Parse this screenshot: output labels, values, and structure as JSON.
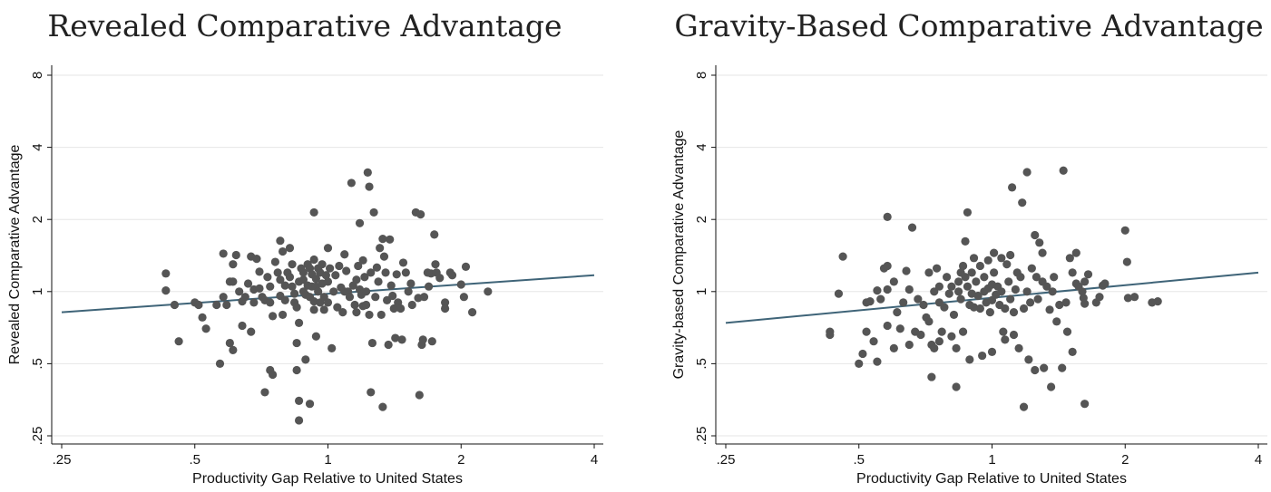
{
  "colors": {
    "points": "#555555",
    "fit_line": "#3f6478",
    "gridline": "#e6e6e6"
  },
  "chart_data": [
    {
      "type": "scatter",
      "title": "Revealed Comparative Advantage",
      "xlabel": "Productivity Gap Relative to United States",
      "ylabel": "Revealed Comparative Advantage",
      "x_scale": "log2",
      "y_scale": "log2",
      "xlim": [
        0.25,
        4
      ],
      "ylim": [
        0.25,
        8
      ],
      "x_ticks": [
        0.25,
        0.5,
        1,
        2,
        4
      ],
      "x_tick_labels": [
        ".25",
        ".5",
        "1",
        "2",
        "4"
      ],
      "y_ticks": [
        0.25,
        0.5,
        1,
        2,
        4,
        8
      ],
      "y_tick_labels": [
        ".25",
        ".5",
        "1",
        "2",
        "4",
        "8"
      ],
      "grid": "horizontal",
      "fit_line": {
        "x": [
          0.25,
          4
        ],
        "y": [
          0.82,
          1.17
        ]
      },
      "points": [
        [
          0.43,
          1.19
        ],
        [
          0.43,
          1.01
        ],
        [
          0.45,
          0.88
        ],
        [
          0.46,
          0.62
        ],
        [
          0.5,
          0.9
        ],
        [
          0.51,
          0.88
        ],
        [
          0.52,
          0.78
        ],
        [
          0.53,
          0.7
        ],
        [
          0.56,
          0.88
        ],
        [
          0.57,
          0.5
        ],
        [
          0.58,
          1.44
        ],
        [
          0.58,
          0.95
        ],
        [
          0.59,
          0.88
        ],
        [
          0.6,
          1.1
        ],
        [
          0.6,
          0.61
        ],
        [
          0.61,
          1.3
        ],
        [
          0.61,
          1.1
        ],
        [
          0.61,
          0.57
        ],
        [
          0.62,
          1.42
        ],
        [
          0.63,
          1.0
        ],
        [
          0.64,
          0.91
        ],
        [
          0.64,
          0.72
        ],
        [
          0.65,
          0.95
        ],
        [
          0.66,
          1.08
        ],
        [
          0.67,
          1.4
        ],
        [
          0.67,
          0.68
        ],
        [
          0.68,
          1.02
        ],
        [
          0.68,
          0.9
        ],
        [
          0.69,
          1.37
        ],
        [
          0.7,
          1.21
        ],
        [
          0.7,
          1.03
        ],
        [
          0.71,
          0.95
        ],
        [
          0.72,
          0.92
        ],
        [
          0.72,
          0.38
        ],
        [
          0.73,
          1.15
        ],
        [
          0.74,
          1.05
        ],
        [
          0.74,
          0.9
        ],
        [
          0.74,
          0.47
        ],
        [
          0.75,
          0.79
        ],
        [
          0.75,
          0.45
        ],
        [
          0.76,
          1.33
        ],
        [
          0.77,
          1.2
        ],
        [
          0.78,
          1.12
        ],
        [
          0.78,
          1.63
        ],
        [
          0.78,
          0.96
        ],
        [
          0.79,
          1.47
        ],
        [
          0.79,
          0.8
        ],
        [
          0.8,
          1.06
        ],
        [
          0.8,
          0.92
        ],
        [
          0.81,
          1.2
        ],
        [
          0.82,
          1.52
        ],
        [
          0.83,
          1.3
        ],
        [
          0.82,
          1.15
        ],
        [
          0.83,
          1.05
        ],
        [
          0.84,
          0.98
        ],
        [
          0.84,
          0.9
        ],
        [
          0.85,
          0.86
        ],
        [
          0.85,
          0.61
        ],
        [
          0.85,
          0.47
        ],
        [
          0.86,
          1.1
        ],
        [
          0.86,
          0.74
        ],
        [
          0.86,
          0.35
        ],
        [
          0.86,
          0.29
        ],
        [
          0.87,
          1.25
        ],
        [
          0.88,
          1.2
        ],
        [
          0.88,
          1.12
        ],
        [
          0.88,
          1.0
        ],
        [
          0.89,
          0.97
        ],
        [
          0.89,
          0.52
        ],
        [
          0.9,
          1.3
        ],
        [
          0.9,
          1.06
        ],
        [
          0.91,
          1.25
        ],
        [
          0.91,
          0.95
        ],
        [
          0.91,
          0.34
        ],
        [
          0.92,
          1.18
        ],
        [
          0.92,
          1.05
        ],
        [
          0.93,
          2.14
        ],
        [
          0.93,
          1.36
        ],
        [
          0.93,
          0.91
        ],
        [
          0.93,
          0.84
        ],
        [
          0.94,
          1.13
        ],
        [
          0.94,
          1.05
        ],
        [
          0.94,
          0.65
        ],
        [
          0.95,
          1.25
        ],
        [
          0.95,
          1.0
        ],
        [
          0.96,
          0.9
        ],
        [
          0.96,
          1.2
        ],
        [
          0.97,
          1.3
        ],
        [
          0.97,
          1.08
        ],
        [
          0.98,
          0.95
        ],
        [
          0.98,
          0.84
        ],
        [
          0.99,
          1.17
        ],
        [
          1.0,
          1.52
        ],
        [
          1.0,
          1.1
        ],
        [
          1.0,
          0.9
        ],
        [
          1.01,
          1.25
        ],
        [
          1.02,
          0.58
        ],
        [
          1.03,
          1.0
        ],
        [
          1.04,
          1.17
        ],
        [
          1.05,
          0.86
        ],
        [
          1.06,
          1.28
        ],
        [
          1.07,
          1.04
        ],
        [
          1.08,
          0.82
        ],
        [
          1.09,
          1.43
        ],
        [
          1.09,
          1.0
        ],
        [
          1.1,
          1.22
        ],
        [
          1.11,
          1.0
        ],
        [
          1.12,
          0.95
        ],
        [
          1.13,
          2.84
        ],
        [
          1.14,
          1.06
        ],
        [
          1.15,
          0.88
        ],
        [
          1.16,
          1.12
        ],
        [
          1.16,
          0.82
        ],
        [
          1.17,
          1.28
        ],
        [
          1.18,
          1.93
        ],
        [
          1.18,
          1.02
        ],
        [
          1.19,
          0.97
        ],
        [
          1.2,
          1.35
        ],
        [
          1.2,
          0.87
        ],
        [
          1.21,
          1.15
        ],
        [
          1.22,
          1.0
        ],
        [
          1.22,
          0.88
        ],
        [
          1.23,
          3.14
        ],
        [
          1.24,
          2.74
        ],
        [
          1.24,
          0.8
        ],
        [
          1.25,
          1.2
        ],
        [
          1.25,
          0.38
        ],
        [
          1.26,
          0.61
        ],
        [
          1.27,
          2.14
        ],
        [
          1.28,
          0.95
        ],
        [
          1.29,
          1.26
        ],
        [
          1.3,
          1.1
        ],
        [
          1.31,
          1.52
        ],
        [
          1.32,
          0.8
        ],
        [
          1.33,
          1.66
        ],
        [
          1.33,
          0.33
        ],
        [
          1.34,
          1.4
        ],
        [
          1.35,
          1.2
        ],
        [
          1.36,
          0.92
        ],
        [
          1.37,
          0.6
        ],
        [
          1.38,
          1.65
        ],
        [
          1.39,
          1.06
        ],
        [
          1.4,
          0.96
        ],
        [
          1.41,
          0.85
        ],
        [
          1.42,
          0.64
        ],
        [
          1.43,
          1.18
        ],
        [
          1.44,
          0.9
        ],
        [
          1.46,
          0.85
        ],
        [
          1.47,
          0.63
        ],
        [
          1.48,
          1.32
        ],
        [
          1.5,
          1.2
        ],
        [
          1.52,
          1.0
        ],
        [
          1.54,
          1.08
        ],
        [
          1.55,
          0.88
        ],
        [
          1.58,
          2.14
        ],
        [
          1.6,
          0.94
        ],
        [
          1.61,
          0.37
        ],
        [
          1.62,
          2.1
        ],
        [
          1.63,
          0.6
        ],
        [
          1.64,
          0.63
        ],
        [
          1.65,
          0.95
        ],
        [
          1.68,
          1.2
        ],
        [
          1.69,
          1.05
        ],
        [
          1.71,
          1.19
        ],
        [
          1.72,
          0.62
        ],
        [
          1.74,
          1.73
        ],
        [
          1.75,
          1.3
        ],
        [
          1.76,
          1.2
        ],
        [
          1.79,
          1.14
        ],
        [
          1.84,
          0.9
        ],
        [
          1.84,
          0.85
        ],
        [
          1.89,
          1.2
        ],
        [
          1.91,
          1.17
        ],
        [
          2.0,
          1.07
        ],
        [
          2.03,
          0.95
        ],
        [
          2.05,
          1.27
        ],
        [
          2.12,
          0.82
        ],
        [
          2.3,
          1.0
        ]
      ]
    },
    {
      "type": "scatter",
      "title": "Gravity-Based Comparative Advantage",
      "xlabel": "Productivity Gap Relative to United States",
      "ylabel": "Gravity-based Comparative Advantage",
      "x_scale": "log2",
      "y_scale": "log2",
      "xlim": [
        0.25,
        4
      ],
      "ylim": [
        0.25,
        8
      ],
      "x_ticks": [
        0.25,
        0.5,
        1,
        2,
        4
      ],
      "x_tick_labels": [
        ".25",
        ".5",
        "1",
        "2",
        "4"
      ],
      "y_ticks": [
        0.25,
        0.5,
        1,
        2,
        4,
        8
      ],
      "y_tick_labels": [
        ".25",
        ".5",
        "1",
        "2",
        "4",
        "8"
      ],
      "grid": "horizontal",
      "fit_line": {
        "x": [
          0.25,
          4
        ],
        "y": [
          0.74,
          1.2
        ]
      },
      "points": [
        [
          0.43,
          0.68
        ],
        [
          0.43,
          0.66
        ],
        [
          0.45,
          0.98
        ],
        [
          0.46,
          1.4
        ],
        [
          0.5,
          0.5
        ],
        [
          0.51,
          0.55
        ],
        [
          0.52,
          0.9
        ],
        [
          0.52,
          0.68
        ],
        [
          0.53,
          0.91
        ],
        [
          0.54,
          0.62
        ],
        [
          0.55,
          1.01
        ],
        [
          0.55,
          0.51
        ],
        [
          0.56,
          0.93
        ],
        [
          0.57,
          1.25
        ],
        [
          0.58,
          2.05
        ],
        [
          0.58,
          1.28
        ],
        [
          0.58,
          1.02
        ],
        [
          0.58,
          0.72
        ],
        [
          0.6,
          1.1
        ],
        [
          0.6,
          0.58
        ],
        [
          0.61,
          0.82
        ],
        [
          0.62,
          0.7
        ],
        [
          0.63,
          0.9
        ],
        [
          0.64,
          1.22
        ],
        [
          0.65,
          1.02
        ],
        [
          0.65,
          0.6
        ],
        [
          0.66,
          1.85
        ],
        [
          0.67,
          0.68
        ],
        [
          0.68,
          0.93
        ],
        [
          0.69,
          0.66
        ],
        [
          0.7,
          0.88
        ],
        [
          0.71,
          0.78
        ],
        [
          0.72,
          1.2
        ],
        [
          0.72,
          0.75
        ],
        [
          0.73,
          0.6
        ],
        [
          0.73,
          0.44
        ],
        [
          0.74,
          1.0
        ],
        [
          0.74,
          0.58
        ],
        [
          0.75,
          1.25
        ],
        [
          0.76,
          1.05
        ],
        [
          0.76,
          0.9
        ],
        [
          0.76,
          0.62
        ],
        [
          0.77,
          0.68
        ],
        [
          0.78,
          0.86
        ],
        [
          0.79,
          1.15
        ],
        [
          0.8,
          0.98
        ],
        [
          0.81,
          1.05
        ],
        [
          0.81,
          0.65
        ],
        [
          0.82,
          0.8
        ],
        [
          0.83,
          0.58
        ],
        [
          0.83,
          0.4
        ],
        [
          0.84,
          1.1
        ],
        [
          0.84,
          1.0
        ],
        [
          0.85,
          1.2
        ],
        [
          0.85,
          0.93
        ],
        [
          0.86,
          1.28
        ],
        [
          0.86,
          0.68
        ],
        [
          0.87,
          1.62
        ],
        [
          0.87,
          1.15
        ],
        [
          0.88,
          2.14
        ],
        [
          0.88,
          1.05
        ],
        [
          0.89,
          0.88
        ],
        [
          0.89,
          0.52
        ],
        [
          0.9,
          1.2
        ],
        [
          0.9,
          0.98
        ],
        [
          0.91,
          1.38
        ],
        [
          0.91,
          0.86
        ],
        [
          0.92,
          1.1
        ],
        [
          0.93,
          0.96
        ],
        [
          0.94,
          1.28
        ],
        [
          0.94,
          0.85
        ],
        [
          0.95,
          0.54
        ],
        [
          0.96,
          1.15
        ],
        [
          0.96,
          1.0
        ],
        [
          0.97,
          0.9
        ],
        [
          0.98,
          1.35
        ],
        [
          0.98,
          1.03
        ],
        [
          0.99,
          0.82
        ],
        [
          1.0,
          1.07
        ],
        [
          1.0,
          0.92
        ],
        [
          1.0,
          0.56
        ],
        [
          1.01,
          1.45
        ],
        [
          1.01,
          1.2
        ],
        [
          1.02,
          0.97
        ],
        [
          1.03,
          1.05
        ],
        [
          1.04,
          0.88
        ],
        [
          1.05,
          1.38
        ],
        [
          1.05,
          1.0
        ],
        [
          1.06,
          0.68
        ],
        [
          1.07,
          0.85
        ],
        [
          1.07,
          0.63
        ],
        [
          1.08,
          1.3
        ],
        [
          1.09,
          1.1
        ],
        [
          1.1,
          1.42
        ],
        [
          1.1,
          0.93
        ],
        [
          1.11,
          2.72
        ],
        [
          1.12,
          0.82
        ],
        [
          1.12,
          0.66
        ],
        [
          1.13,
          1.02
        ],
        [
          1.14,
          1.2
        ],
        [
          1.15,
          0.58
        ],
        [
          1.16,
          1.15
        ],
        [
          1.17,
          2.35
        ],
        [
          1.18,
          0.33
        ],
        [
          1.18,
          0.85
        ],
        [
          1.2,
          3.15
        ],
        [
          1.2,
          1.0
        ],
        [
          1.21,
          0.52
        ],
        [
          1.22,
          0.9
        ],
        [
          1.23,
          1.25
        ],
        [
          1.25,
          1.72
        ],
        [
          1.25,
          0.47
        ],
        [
          1.26,
          1.15
        ],
        [
          1.27,
          0.93
        ],
        [
          1.28,
          1.6
        ],
        [
          1.3,
          1.45
        ],
        [
          1.3,
          1.1
        ],
        [
          1.31,
          0.48
        ],
        [
          1.33,
          1.05
        ],
        [
          1.35,
          0.84
        ],
        [
          1.36,
          0.4
        ],
        [
          1.37,
          1.0
        ],
        [
          1.38,
          1.15
        ],
        [
          1.4,
          0.75
        ],
        [
          1.42,
          0.88
        ],
        [
          1.44,
          0.48
        ],
        [
          1.45,
          3.2
        ],
        [
          1.47,
          0.9
        ],
        [
          1.48,
          0.68
        ],
        [
          1.5,
          1.38
        ],
        [
          1.52,
          1.2
        ],
        [
          1.52,
          0.56
        ],
        [
          1.55,
          1.08
        ],
        [
          1.57,
          1.05
        ],
        [
          1.6,
          1.0
        ],
        [
          1.61,
          0.94
        ],
        [
          1.62,
          0.89
        ],
        [
          1.62,
          0.34
        ],
        [
          1.65,
          1.18
        ],
        [
          1.72,
          0.9
        ],
        [
          1.75,
          0.95
        ],
        [
          1.78,
          1.06
        ],
        [
          1.8,
          1.08
        ],
        [
          2.0,
          1.8
        ],
        [
          2.02,
          1.33
        ],
        [
          2.03,
          0.94
        ],
        [
          2.1,
          0.95
        ],
        [
          2.37,
          0.91
        ],
        [
          2.3,
          0.9
        ],
        [
          1.55,
          1.45
        ],
        [
          1.62,
          1.1
        ]
      ]
    }
  ]
}
